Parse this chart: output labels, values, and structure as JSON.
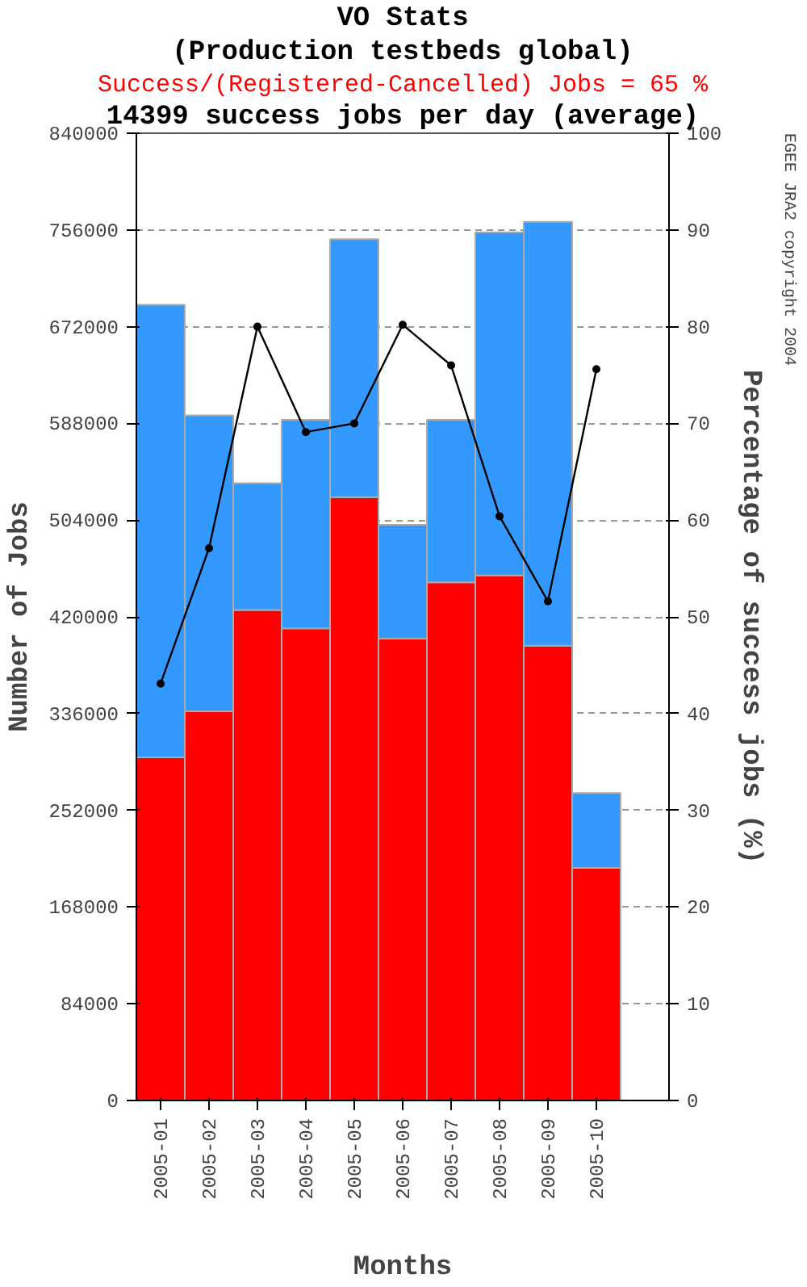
{
  "chart_data": {
    "type": "bar",
    "title": "VO Stats",
    "subtitle": "(Production testbeds global)",
    "annotations": [
      "Success/(Registered-Cancelled) Jobs = 65 %",
      "14399 success jobs per day (average)",
      "EGEE JRA2 copyright 2004"
    ],
    "xlabel": "Months",
    "ylabel": "Number of Jobs",
    "y2label": "Percentage of success jobs (%)",
    "categories": [
      "2005-01",
      "2005-02",
      "2005-03",
      "2005-04",
      "2005-05",
      "2005-06",
      "2005-07",
      "2005-08",
      "2005-09",
      "2005-10"
    ],
    "stacked": true,
    "series": [
      {
        "color": "#ff0000",
        "values": [
          298000,
          338000,
          426000,
          410000,
          524000,
          401000,
          450000,
          456000,
          395000,
          202000
        ]
      },
      {
        "color": "#3399ff",
        "values": [
          393000,
          257000,
          110000,
          181000,
          224000,
          99000,
          141000,
          298000,
          368000,
          65000
        ]
      },
      {
        "type": "line",
        "axis": "y2",
        "color": "#000000",
        "marker": "circle",
        "values": [
          43.1,
          57.1,
          80.0,
          69.1,
          70.0,
          80.2,
          76.0,
          60.4,
          51.6,
          75.6
        ]
      }
    ],
    "ylim": [
      0,
      840000
    ],
    "yticks": [
      0,
      84000,
      168000,
      252000,
      336000,
      420000,
      504000,
      588000,
      672000,
      756000,
      840000
    ],
    "y2lim": [
      0,
      100
    ],
    "y2ticks": [
      0,
      10,
      20,
      30,
      40,
      50,
      60,
      70,
      80,
      90,
      100
    ],
    "grid": "y"
  }
}
